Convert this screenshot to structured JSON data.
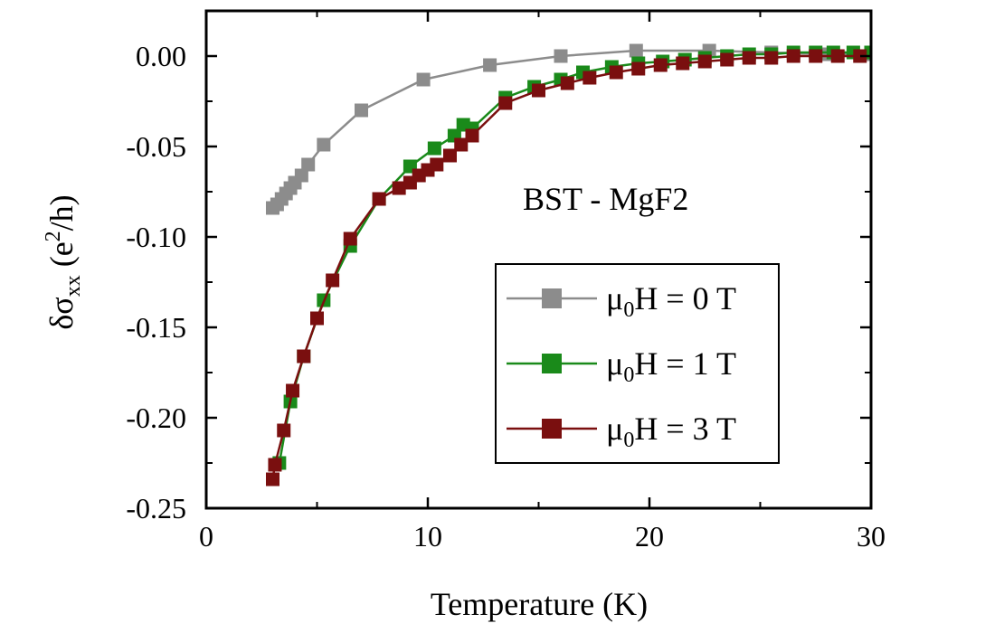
{
  "chart_data": {
    "type": "line",
    "title": "",
    "xlabel": "Temperature (K)",
    "ylabel": {
      "prefix": "δσ",
      "sub": "xx",
      "unit_open": " (e",
      "sup": "2",
      "unit_close": "/h)"
    },
    "xlim": [
      0,
      30
    ],
    "ylim": [
      -0.25,
      0.025
    ],
    "xticks": [
      0,
      10,
      20,
      30
    ],
    "xtick_labels": [
      "0",
      "10",
      "20",
      "30"
    ],
    "yticks": [
      0.0,
      -0.05,
      -0.1,
      -0.15,
      -0.2,
      -0.25
    ],
    "ytick_labels": [
      "0.00",
      "-0.05",
      "-0.10",
      "-0.15",
      "-0.20",
      "-0.25"
    ],
    "annotation": "BST - MgF2",
    "legend_position": "lower-right",
    "series": [
      {
        "name": "μ0H = 0 T",
        "label_parts": {
          "mu": "μ",
          "sub": "0",
          "rest": "H = 0 T"
        },
        "color": "#8c8c8c",
        "x": [
          3.0,
          3.2,
          3.4,
          3.6,
          3.8,
          4.0,
          4.3,
          4.6,
          5.3,
          7.0,
          9.8,
          12.8,
          16.0,
          19.4,
          22.7,
          25.5,
          28.0,
          30.0
        ],
        "y": [
          -0.084,
          -0.082,
          -0.079,
          -0.076,
          -0.073,
          -0.07,
          -0.066,
          -0.06,
          -0.049,
          -0.03,
          -0.013,
          -0.005,
          0.0,
          0.003,
          0.003,
          0.002,
          0.001,
          0.001
        ]
      },
      {
        "name": "μ0H = 1 T",
        "label_parts": {
          "mu": "μ",
          "sub": "0",
          "rest": "H = 1 T"
        },
        "color": "#1a8a1a",
        "x": [
          3.3,
          3.8,
          4.4,
          5.3,
          6.5,
          7.8,
          9.2,
          10.3,
          11.2,
          11.6,
          12.0,
          13.5,
          14.8,
          16.0,
          17.0,
          18.3,
          19.5,
          20.6,
          21.6,
          22.5,
          23.5,
          24.5,
          25.5,
          26.5,
          27.5,
          28.3,
          29.2,
          30.0
        ],
        "y": [
          -0.225,
          -0.191,
          -0.166,
          -0.135,
          -0.105,
          -0.079,
          -0.061,
          -0.051,
          -0.044,
          -0.038,
          -0.04,
          -0.023,
          -0.017,
          -0.013,
          -0.009,
          -0.006,
          -0.004,
          -0.003,
          -0.002,
          -0.001,
          0.0,
          0.001,
          0.001,
          0.002,
          0.002,
          0.002,
          0.002,
          0.002
        ]
      },
      {
        "name": "μ0H = 3 T",
        "label_parts": {
          "mu": "μ",
          "sub": "0",
          "rest": "H = 3 T"
        },
        "color": "#7a0f0f",
        "x": [
          3.0,
          3.1,
          3.5,
          3.9,
          4.4,
          5.0,
          5.7,
          6.5,
          7.8,
          8.7,
          9.2,
          9.6,
          10.0,
          10.4,
          11.0,
          11.5,
          12.0,
          13.5,
          15.0,
          16.3,
          17.3,
          18.5,
          19.5,
          20.5,
          21.5,
          22.5,
          23.5,
          24.5,
          25.5,
          26.5,
          27.5,
          28.5,
          29.5
        ],
        "y": [
          -0.234,
          -0.226,
          -0.207,
          -0.185,
          -0.166,
          -0.145,
          -0.124,
          -0.101,
          -0.079,
          -0.073,
          -0.07,
          -0.066,
          -0.063,
          -0.06,
          -0.055,
          -0.049,
          -0.044,
          -0.026,
          -0.019,
          -0.015,
          -0.012,
          -0.009,
          -0.007,
          -0.005,
          -0.004,
          -0.003,
          -0.002,
          -0.001,
          -0.001,
          0.0,
          0.0,
          0.0,
          0.0
        ]
      }
    ]
  }
}
